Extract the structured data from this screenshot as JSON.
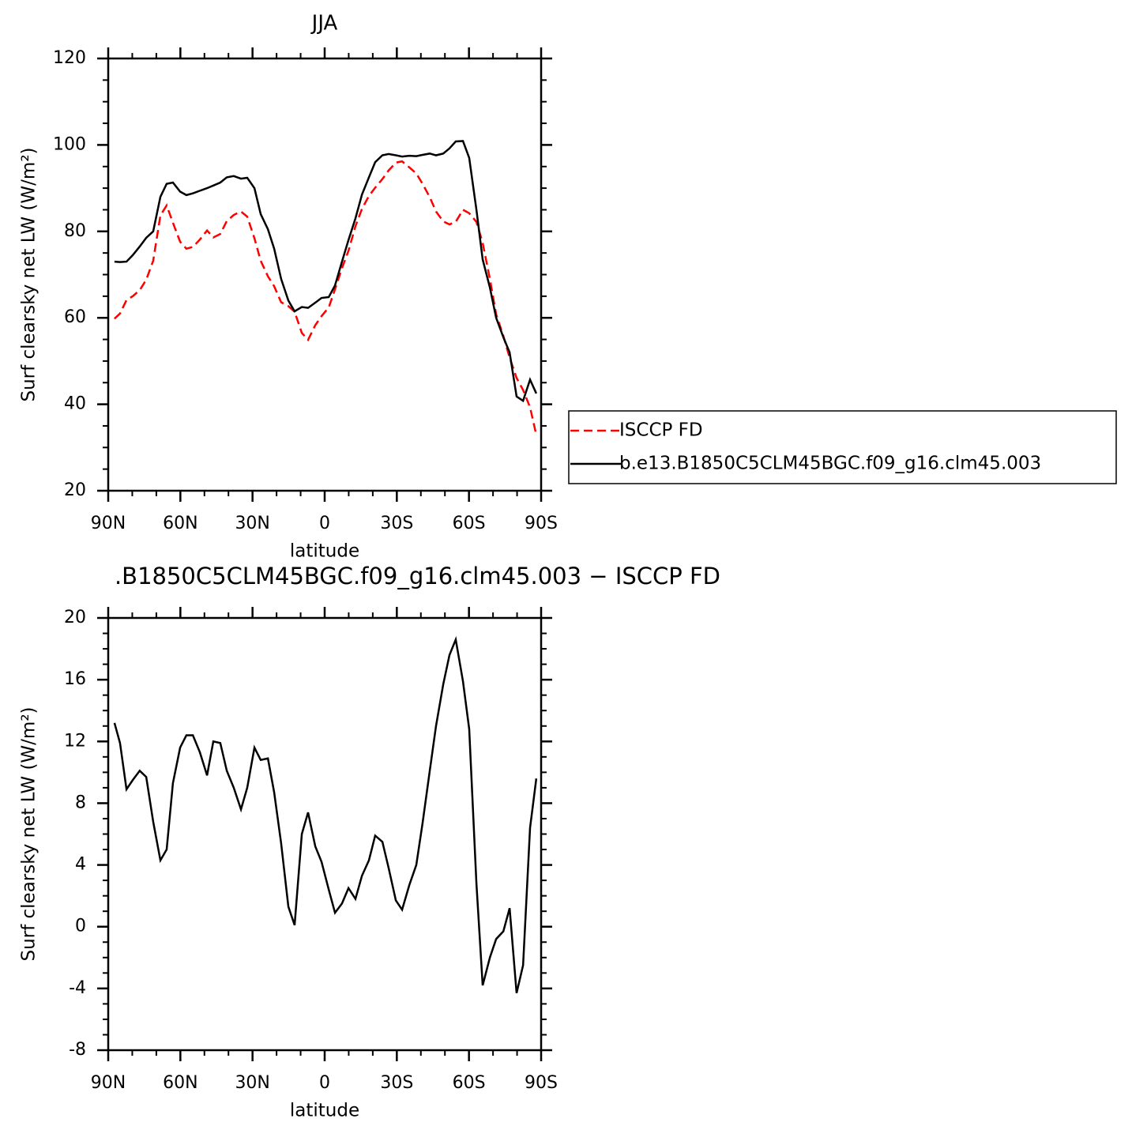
{
  "chart_data": [
    {
      "type": "line",
      "title": "JJA",
      "y_label": "Surf clearsky net LW (W/m²)",
      "x_label": "latitude",
      "x": [
        87.4,
        85.1,
        82.4,
        79.8,
        76.9,
        74.2,
        71.3,
        68.3,
        65.7,
        63.1,
        60.1,
        57.5,
        54.8,
        51.9,
        48.9,
        46.3,
        43.4,
        40.7,
        37.8,
        34.8,
        32.2,
        29.2,
        26.6,
        23.6,
        21.0,
        18.1,
        15.1,
        12.5,
        9.5,
        6.9,
        3.9,
        1.3,
        -1.7,
        -4.3,
        -7.2,
        -9.9,
        -12.8,
        -15.5,
        -18.4,
        -21.0,
        -24.0,
        -26.6,
        -29.6,
        -32.2,
        -35.2,
        -38.1,
        -40.7,
        -43.7,
        -46.3,
        -49.3,
        -51.9,
        -54.5,
        -57.5,
        -60.1,
        -63.1,
        -65.7,
        -68.7,
        -71.3,
        -74.3,
        -76.9,
        -79.8,
        -82.5,
        -85.4,
        -88.0
      ],
      "series": [
        {
          "name": "ISCCP FD",
          "color": "#ff0000",
          "line_style": "dashed",
          "values": [
            59.8,
            61,
            64.1,
            65,
            66.4,
            68.8,
            73.2,
            83.7,
            86,
            82,
            77.6,
            76,
            76.4,
            78.1,
            80.2,
            78.6,
            79.4,
            82.4,
            83.8,
            84.6,
            83.4,
            78.4,
            73.2,
            69.6,
            67.3,
            63.6,
            62.7,
            61.4,
            56.5,
            54.9,
            58.3,
            60.4,
            62.4,
            66.6,
            71.5,
            75.5,
            81.2,
            85.2,
            88.2,
            90.1,
            92.1,
            94.1,
            95.9,
            96.2,
            94.8,
            93.4,
            91.0,
            87.9,
            84.6,
            82.3,
            81.6,
            82.2,
            85,
            84.2,
            82.2,
            77.3,
            69,
            60.8,
            55.8,
            50.8,
            46.1,
            43.3,
            39.3,
            32.9
          ]
        },
        {
          "name": "b.e13.B1850C5CLM45BGC.f09_g16.clm45.003",
          "color": "#000000",
          "line_style": "solid",
          "values": [
            73,
            72.9,
            73,
            74.5,
            76.5,
            78.5,
            80,
            88,
            91,
            91.3,
            89.2,
            88.4,
            88.8,
            89.4,
            90,
            90.6,
            91.3,
            92.5,
            92.8,
            92.2,
            92.4,
            90,
            84,
            80.5,
            76,
            69,
            64,
            61.5,
            62.5,
            62.3,
            63.5,
            64.6,
            64.8,
            67.5,
            73,
            78,
            83,
            88.5,
            92.5,
            96,
            97.6,
            97.9,
            97.6,
            97.3,
            97.5,
            97.4,
            97.7,
            98,
            97.6,
            98,
            99.2,
            100.8,
            100.9,
            97,
            85,
            73.5,
            67,
            60,
            55.5,
            52,
            41.8,
            40.8,
            45.7,
            42.5
          ]
        }
      ],
      "xlim": [
        90,
        -90
      ],
      "xticks": [
        {
          "value": 90,
          "label": "90N"
        },
        {
          "value": 60,
          "label": "60N"
        },
        {
          "value": 30,
          "label": "30N"
        },
        0,
        {
          "value": -30,
          "label": "30S"
        },
        {
          "value": -60,
          "label": "60S"
        },
        {
          "value": -90,
          "label": "90S"
        }
      ],
      "ylim": [
        20,
        120
      ],
      "yticks": [
        20,
        40,
        60,
        80,
        100,
        120
      ],
      "legend": "right"
    },
    {
      "type": "line",
      "title": ".B1850C5CLM45BGC.f09_g16.clm45.003 − ISCCP FD",
      "y_label": "Surf clearsky net LW (W/m²)",
      "x_label": "latitude",
      "x": [
        87.4,
        85.1,
        82.4,
        79.8,
        76.9,
        74.2,
        71.3,
        68.3,
        65.7,
        63.1,
        60.1,
        57.5,
        54.8,
        51.9,
        48.9,
        46.3,
        43.4,
        40.7,
        37.8,
        34.8,
        32.2,
        29.2,
        26.6,
        23.6,
        21.0,
        18.1,
        15.1,
        12.5,
        9.5,
        6.9,
        3.9,
        1.3,
        -1.7,
        -4.3,
        -7.2,
        -9.9,
        -12.8,
        -15.5,
        -18.4,
        -21.0,
        -24.0,
        -26.6,
        -29.6,
        -32.2,
        -35.2,
        -38.1,
        -40.7,
        -43.7,
        -46.3,
        -49.3,
        -51.9,
        -54.5,
        -57.5,
        -60.1,
        -63.1,
        -65.7,
        -68.7,
        -71.3,
        -74.3,
        -76.9,
        -79.8,
        -82.5,
        -85.4,
        -88.0
      ],
      "series": [
        {
          "color": "#000000",
          "line_style": "solid",
          "values": [
            13.2,
            11.9,
            8.9,
            9.5,
            10.1,
            9.7,
            6.8,
            4.3,
            5.0,
            9.3,
            11.6,
            12.4,
            12.4,
            11.3,
            9.8,
            12.0,
            11.9,
            10.1,
            9.0,
            7.6,
            9.0,
            11.6,
            10.8,
            10.9,
            8.7,
            5.4,
            1.3,
            0.1,
            6.0,
            7.4,
            5.2,
            4.2,
            2.4,
            0.9,
            1.5,
            2.5,
            1.8,
            3.3,
            4.3,
            5.9,
            5.5,
            3.8,
            1.7,
            1.1,
            2.7,
            4.0,
            6.7,
            10.1,
            13.0,
            15.7,
            17.6,
            18.6,
            15.9,
            12.8,
            2.8,
            -3.8,
            -2.0,
            -0.8,
            -0.3,
            1.2,
            -4.3,
            -2.5,
            6.4,
            9.6
          ]
        }
      ],
      "xlim": [
        90,
        -90
      ],
      "xticks": [
        {
          "value": 90,
          "label": "90N"
        },
        {
          "value": 60,
          "label": "60N"
        },
        {
          "value": 30,
          "label": "30N"
        },
        0,
        {
          "value": -30,
          "label": "30S"
        },
        {
          "value": -60,
          "label": "60S"
        },
        {
          "value": -90,
          "label": "90S"
        }
      ],
      "ylim": [
        -8,
        20
      ],
      "yticks": [
        -8,
        -4,
        0,
        4,
        8,
        12,
        16,
        20
      ]
    }
  ]
}
